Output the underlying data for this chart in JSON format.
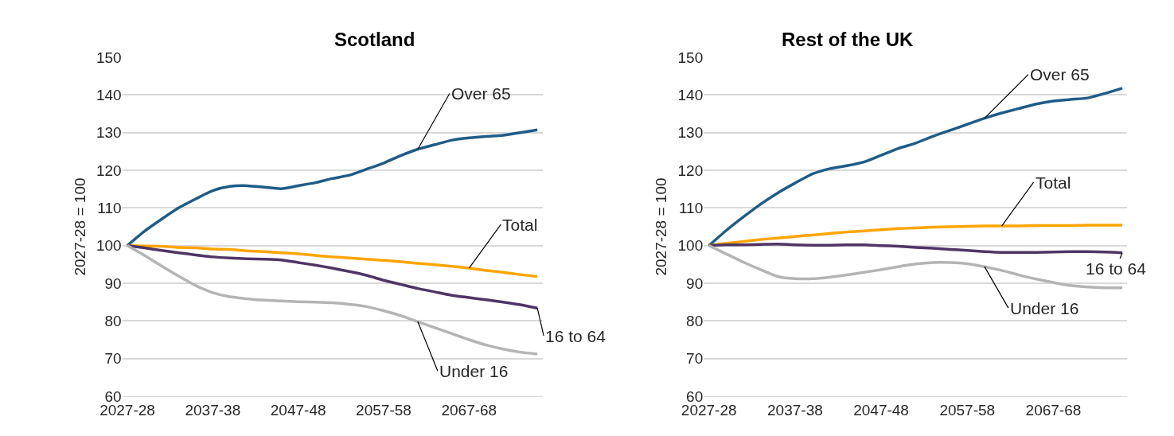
{
  "chart_data": [
    {
      "type": "line",
      "title": "Scotland",
      "ylabel": "2027-28 = 100",
      "categories": [
        "2027-28",
        null,
        null,
        null,
        null,
        "2037-38",
        null,
        null,
        null,
        null,
        "2047-48",
        null,
        null,
        null,
        null,
        "2057-58",
        null,
        null,
        null,
        null,
        "2067-68",
        null,
        null,
        null,
        null
      ],
      "series": [
        {
          "name": "Over 65",
          "color": "#1f5c87",
          "values": [
            100,
            103.8,
            107,
            110,
            112.4,
            114.6,
            115.7,
            115.9,
            115.5,
            115.1,
            115.9,
            116.7,
            117.8,
            118.7,
            120.3,
            121.9,
            123.9,
            125.6,
            126.8,
            128,
            128.6,
            129,
            129.3,
            130,
            130.7
          ]
        },
        {
          "name": "Total",
          "color": "#ffa500",
          "values": [
            100,
            99.9,
            99.8,
            99.5,
            99.4,
            99.1,
            99,
            98.6,
            98.4,
            98.1,
            97.8,
            97.4,
            97,
            96.7,
            96.4,
            96.1,
            95.7,
            95.3,
            94.9,
            94.5,
            94,
            93.4,
            92.9,
            92.3,
            91.8
          ]
        },
        {
          "name": "16 to 64",
          "color": "#4f3566",
          "values": [
            100,
            99.4,
            98.7,
            98.1,
            97.5,
            97,
            96.7,
            96.5,
            96.4,
            96.2,
            95.5,
            94.8,
            94,
            93.1,
            92.1,
            90.8,
            89.7,
            88.6,
            87.7,
            86.8,
            86.2,
            85.6,
            85,
            84.3,
            83.4
          ]
        },
        {
          "name": "Under 16",
          "color": "#b4b4b4",
          "values": [
            100,
            97.4,
            94.6,
            91.9,
            89.4,
            87.5,
            86.4,
            85.9,
            85.5,
            85.3,
            85.1,
            85,
            84.8,
            84.4,
            83.8,
            82.7,
            81.4,
            79.8,
            78.2,
            76.6,
            75,
            73.6,
            72.5,
            71.7,
            71.2
          ]
        }
      ],
      "ylim": [
        60,
        150
      ],
      "yticks": [
        60,
        70,
        80,
        90,
        100,
        110,
        120,
        130,
        140,
        150
      ],
      "grid": "y",
      "marker": "none",
      "line_style": "solid"
    },
    {
      "type": "line",
      "title": "Rest of the UK",
      "ylabel": "2027-28 = 100",
      "categories": [
        "2027-28",
        null,
        null,
        null,
        null,
        "2037-38",
        null,
        null,
        null,
        null,
        "2047-48",
        null,
        null,
        null,
        null,
        "2057-58",
        null,
        null,
        null,
        null,
        "2067-68",
        null,
        null,
        null,
        null
      ],
      "series": [
        {
          "name": "Over 65",
          "color": "#1f5c87",
          "values": [
            100,
            104,
            107.6,
            111,
            114,
            116.6,
            119,
            120.4,
            121.2,
            122.2,
            124,
            125.8,
            127.2,
            129,
            130.6,
            132.2,
            133.8,
            135.2,
            136.4,
            137.6,
            138.4,
            138.8,
            139.2,
            140.4,
            141.8
          ]
        },
        {
          "name": "Total",
          "color": "#ffa500",
          "values": [
            100,
            100.6,
            101.1,
            101.6,
            102,
            102.4,
            102.8,
            103.2,
            103.6,
            103.9,
            104.2,
            104.5,
            104.7,
            104.9,
            105,
            105.1,
            105.2,
            105.2,
            105.2,
            105.3,
            105.3,
            105.3,
            105.4,
            105.4,
            105.4
          ]
        },
        {
          "name": "16 to 64",
          "color": "#4f3566",
          "values": [
            100,
            100.2,
            100.2,
            100.3,
            100.4,
            100.2,
            100.1,
            100.1,
            100.2,
            100.2,
            100,
            99.8,
            99.5,
            99.3,
            99,
            98.7,
            98.4,
            98.2,
            98.2,
            98.2,
            98.3,
            98.4,
            98.4,
            98.3,
            98.1
          ]
        },
        {
          "name": "Under 16",
          "color": "#b4b4b4",
          "values": [
            100,
            97.8,
            95.6,
            93.6,
            91.8,
            91.2,
            91.2,
            91.6,
            92.2,
            92.9,
            93.6,
            94.4,
            95.1,
            95.5,
            95.5,
            95.2,
            94.4,
            93.4,
            92.2,
            91.1,
            90.2,
            89.4,
            89,
            88.8,
            88.8
          ]
        }
      ],
      "ylim": [
        60,
        150
      ],
      "yticks": [
        60,
        70,
        80,
        90,
        100,
        110,
        120,
        130,
        140,
        150
      ],
      "grid": "y",
      "marker": "none",
      "line_style": "solid"
    }
  ]
}
